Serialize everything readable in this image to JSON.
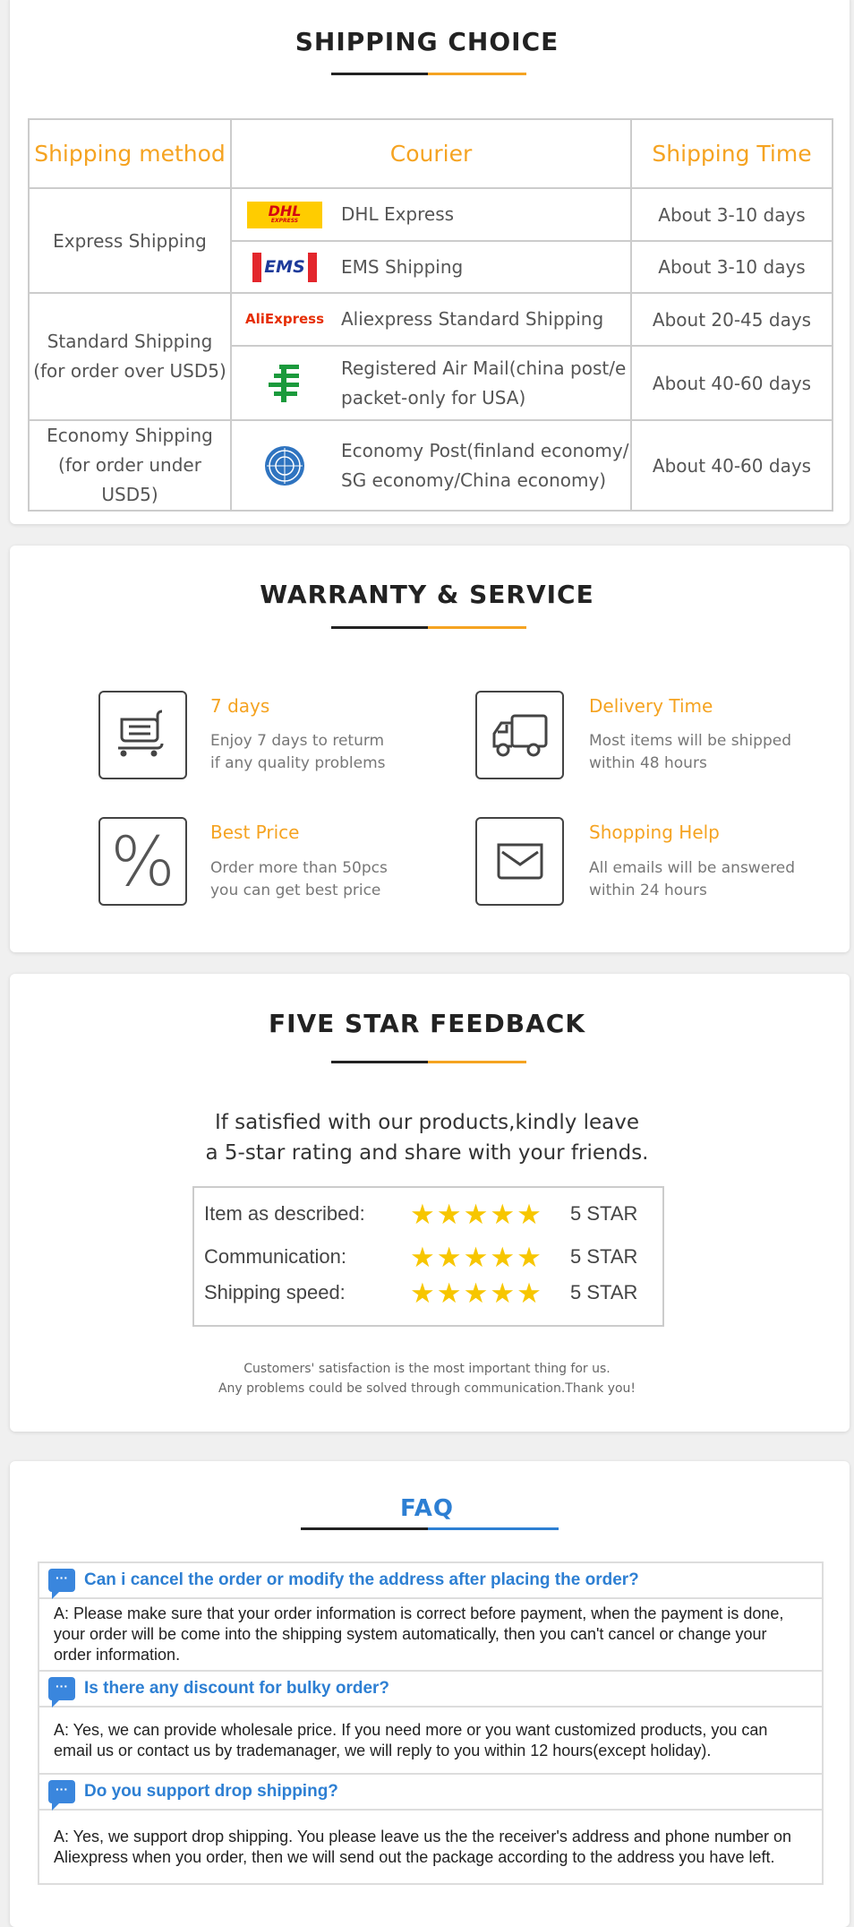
{
  "shipping": {
    "title": "SHIPPING CHOICE",
    "headers": [
      "Shipping method",
      "Courier",
      "Shipping Time"
    ],
    "groups": [
      "Express Shipping",
      "Standard Shipping\n(for order over USD5)",
      "Economy Shipping\n(for order under USD5)"
    ],
    "group_lines": [
      [
        "Express Shipping"
      ],
      [
        "Standard Shipping",
        "(for order over USD5)"
      ],
      [
        "Economy Shipping",
        "(for order under USD5)"
      ]
    ],
    "couriers": [
      {
        "logo": "DHL",
        "logo_sub": "EXPRESS",
        "name": "DHL Express",
        "time": "About 3-10 days"
      },
      {
        "logo": "EMS",
        "name": "EMS Shipping",
        "time": "About 3-10 days"
      },
      {
        "logo": "AliExpress",
        "name": "Aliexpress Standard Shipping",
        "time": "About 20-45 days"
      },
      {
        "logo": "china-post-icon",
        "name_lines": [
          "Registered Air Mail(china post/e",
          "packet-only for USA)"
        ],
        "time": "About 40-60 days"
      },
      {
        "logo": "un-emblem-icon",
        "name_lines": [
          "Economy Post(finland economy/",
          "SG economy/China economy)"
        ],
        "time": "About 40-60 days"
      }
    ]
  },
  "warranty": {
    "title": "WARRANTY & SERVICE",
    "items": [
      {
        "icon": "cart-icon",
        "title": "7 days",
        "desc": [
          "Enjoy 7 days to returm",
          "if any quality problems"
        ]
      },
      {
        "icon": "truck-icon",
        "title": "Delivery Time",
        "desc": [
          "Most items will be shipped",
          "within 48 hours"
        ]
      },
      {
        "icon": "percent-icon",
        "title": "Best Price",
        "desc": [
          "Order more than 50pcs",
          "you can get best price"
        ]
      },
      {
        "icon": "envelope-icon",
        "title": "Shopping Help",
        "desc": [
          "All emails will be answered",
          "within 24 hours"
        ]
      }
    ]
  },
  "feedback": {
    "title": "FIVE STAR FEEDBACK",
    "intro": [
      "If satisfied with our products,kindly leave",
      "a 5-star rating and share with your friends."
    ],
    "rows": [
      {
        "label": "Item as described:",
        "stars": 5,
        "value": "5 STAR"
      },
      {
        "label": "Communication:",
        "stars": 5,
        "value": "5 STAR"
      },
      {
        "label": "Shipping speed:",
        "stars": 5,
        "value": "5 STAR"
      }
    ],
    "footer": [
      "Customers' satisfaction is the most important thing for us.",
      "Any problems could be solved through communication.Thank you!"
    ]
  },
  "faq": {
    "title": "FAQ",
    "items": [
      {
        "q": "Can i cancel the order or modify the address after placing the order?",
        "a": "A: Please make sure that your order information is correct before payment, when the payment is done, your order will be come into the shipping system automatically, then you can't cancel or change your order information."
      },
      {
        "q": "Is there any discount for bulky order?",
        "a": "A: Yes, we can provide wholesale price. If you need more or you want customized products, you can email us or contact us by trademanager, we will reply to you within 12 hours(except holiday)."
      },
      {
        "q": "Do you support drop shipping?",
        "a": "A: Yes, we support drop shipping. You please leave us the the receiver's address and phone number on Aliexpress when you order, then we will send out the package according to the address you have left."
      }
    ]
  },
  "colors": {
    "accent": "#f5a321",
    "faq_blue": "#2d7fd3",
    "star": "#f7c600"
  }
}
